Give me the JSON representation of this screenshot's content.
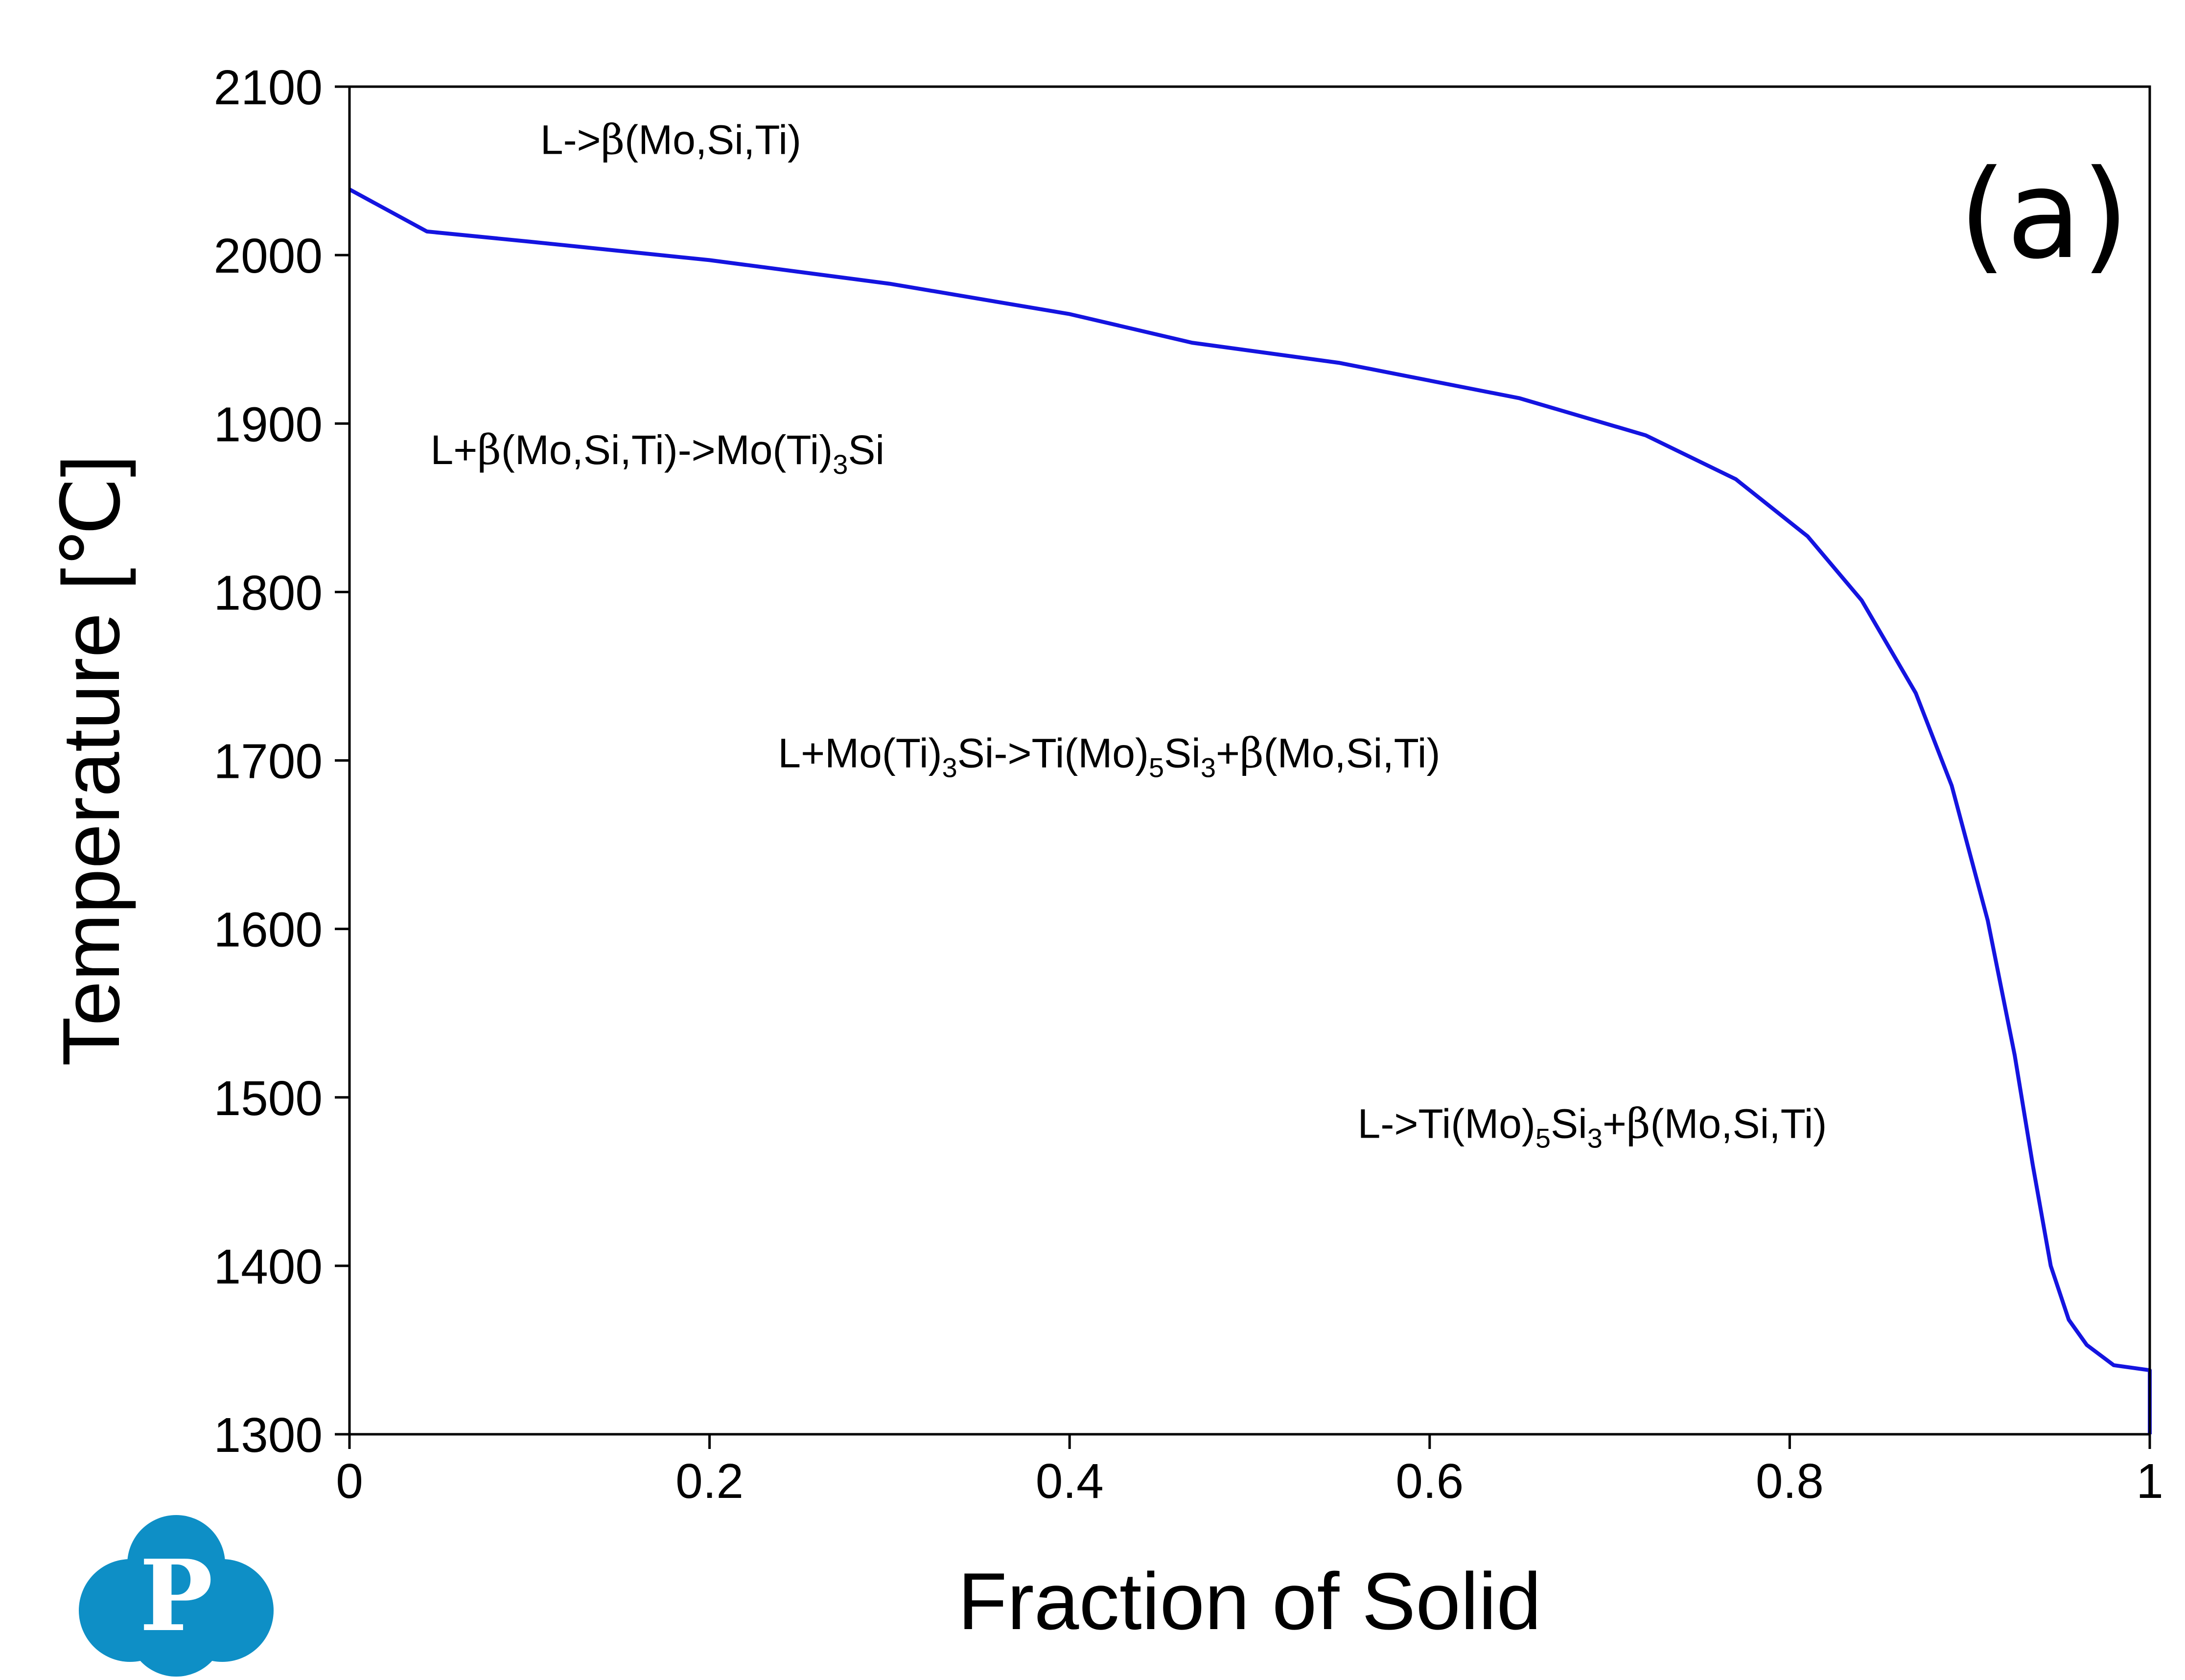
{
  "chart_data": {
    "type": "line",
    "title": "",
    "panel_label": "(a)",
    "xlabel": "Fraction of Solid",
    "ylabel": "Temperature [℃]",
    "xlim": [
      0,
      1
    ],
    "ylim": [
      1300,
      2100
    ],
    "x_ticks": [
      0,
      0.2,
      0.4,
      0.6,
      0.8,
      1
    ],
    "x_tick_labels": [
      "0",
      "0.2",
      "0.4",
      "0.6",
      "0.8",
      "1"
    ],
    "y_ticks": [
      1300,
      1400,
      1500,
      1600,
      1700,
      1800,
      1900,
      2000,
      2100
    ],
    "y_tick_labels": [
      "1300",
      "1400",
      "1500",
      "1600",
      "1700",
      "1800",
      "1900",
      "2000",
      "2100"
    ],
    "grid": false,
    "line_color": "#1414e0",
    "series": [
      {
        "x": [
          0,
          0.043,
          0.1,
          0.2,
          0.3,
          0.4,
          0.468,
          0.55,
          0.65,
          0.72,
          0.77,
          0.81,
          0.84,
          0.87,
          0.89,
          0.91,
          0.925,
          0.935,
          0.945,
          0.955,
          0.965,
          0.98,
          1.0,
          1.0
        ],
        "y": [
          2039,
          2014,
          2008,
          1997,
          1983,
          1965,
          1948,
          1936,
          1915,
          1893,
          1867,
          1833,
          1795,
          1740,
          1685,
          1605,
          1525,
          1460,
          1400,
          1368,
          1353,
          1341,
          1338,
          1300
        ]
      }
    ],
    "annotations": [
      {
        "id": "l-beta",
        "parts": [
          {
            "t": "L->"
          },
          {
            "t": "β",
            "f": "serif"
          },
          {
            "t": "(Mo,Si,Ti)"
          }
        ],
        "x": 0.106,
        "y": 2060
      },
      {
        "id": "l-beta-mo3si",
        "parts": [
          {
            "t": "L+"
          },
          {
            "t": "β",
            "f": "serif"
          },
          {
            "t": "(Mo,Si,Ti)->Mo(Ti)"
          },
          {
            "t": "3",
            "s": "sub"
          },
          {
            "t": "Si"
          }
        ],
        "x": 0.045,
        "y": 1876
      },
      {
        "id": "l-mo3si-ti5si3-beta",
        "parts": [
          {
            "t": "L+Mo(Ti)"
          },
          {
            "t": "3",
            "s": "sub"
          },
          {
            "t": "Si->Ti(Mo)"
          },
          {
            "t": "5",
            "s": "sub"
          },
          {
            "t": "Si"
          },
          {
            "t": "3",
            "s": "sub"
          },
          {
            "t": "+"
          },
          {
            "t": "β",
            "f": "serif"
          },
          {
            "t": "(Mo,Si,Ti)"
          }
        ],
        "x": 0.238,
        "y": 1696
      },
      {
        "id": "l-ti5si3-beta",
        "parts": [
          {
            "t": "L->Ti(Mo)"
          },
          {
            "t": "5",
            "s": "sub"
          },
          {
            "t": "Si"
          },
          {
            "t": "3",
            "s": "sub"
          },
          {
            "t": "+"
          },
          {
            "t": "β",
            "f": "serif"
          },
          {
            "t": "(Mo,Si,Ti)"
          }
        ],
        "x": 0.56,
        "y": 1476
      }
    ],
    "logo": {
      "letter": "P",
      "color": "#0e8fc6"
    }
  }
}
